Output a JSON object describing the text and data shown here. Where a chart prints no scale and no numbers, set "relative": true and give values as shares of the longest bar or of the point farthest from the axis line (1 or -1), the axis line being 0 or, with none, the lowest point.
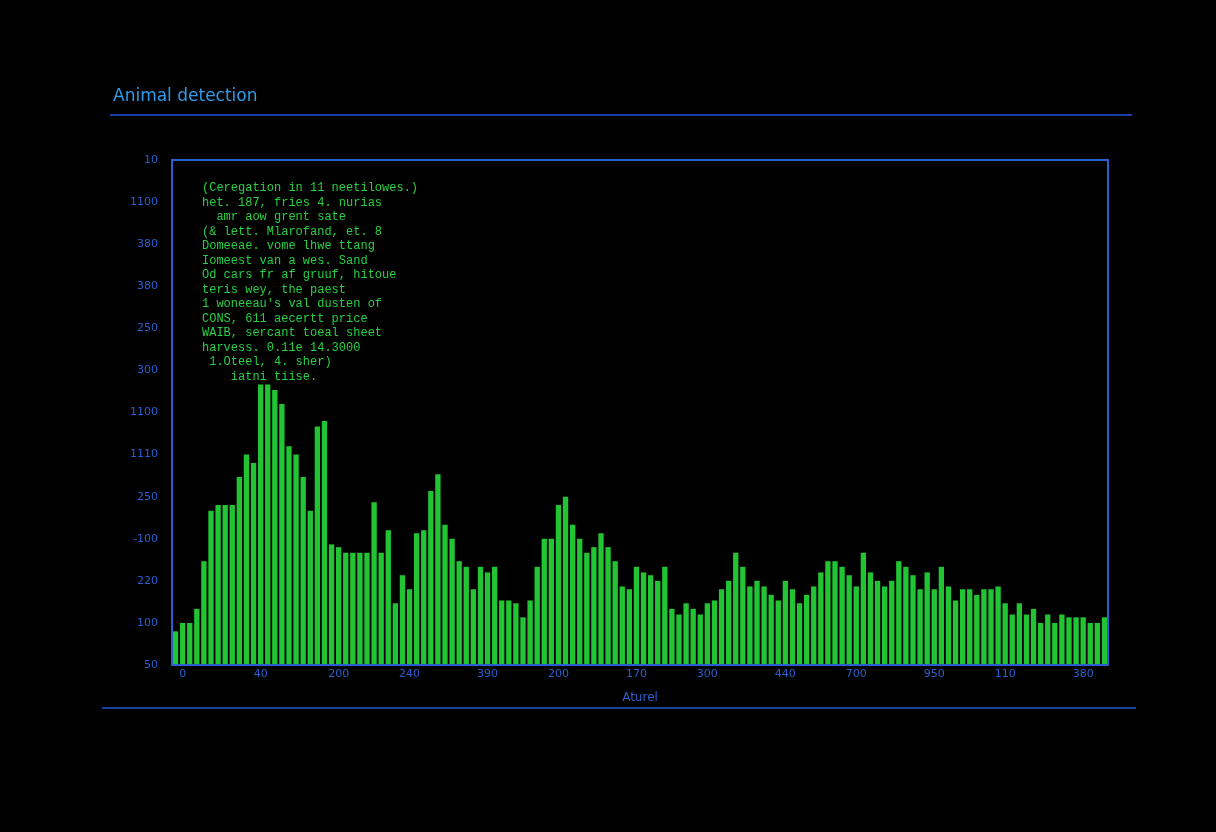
{
  "chart_data": {
    "type": "bar",
    "title": "Animal detection",
    "xlabel": "Aturel",
    "relative": true,
    "color": "#22c433",
    "categories": [
      null,
      "0",
      null,
      null,
      null,
      null,
      null,
      null,
      null,
      null,
      null,
      null,
      "40",
      null,
      null,
      null,
      null,
      null,
      null,
      null,
      null,
      null,
      null,
      "200",
      null,
      null,
      null,
      null,
      null,
      null,
      null,
      null,
      null,
      "240",
      null,
      null,
      null,
      null,
      null,
      null,
      null,
      null,
      null,
      null,
      "390",
      null,
      null,
      null,
      null,
      null,
      null,
      null,
      null,
      null,
      "200",
      null,
      null,
      null,
      null,
      null,
      null,
      null,
      null,
      null,
      null,
      "170",
      null,
      null,
      null,
      null,
      null,
      null,
      null,
      null,
      null,
      "300",
      null,
      null,
      null,
      null,
      null,
      null,
      null,
      null,
      null,
      null,
      "440",
      null,
      null,
      null,
      null,
      null,
      null,
      null,
      null,
      null,
      "700",
      null,
      null,
      null,
      null,
      null,
      null,
      null,
      null,
      null,
      null,
      "950",
      null,
      null,
      null,
      null,
      null,
      null,
      null,
      null,
      null,
      "110",
      null,
      null,
      null,
      null,
      null,
      null,
      null,
      null,
      null,
      null,
      "380",
      null,
      null,
      null
    ],
    "values": [
      0.12,
      0.15,
      0.15,
      0.2,
      0.37,
      0.55,
      0.57,
      0.57,
      0.57,
      0.67,
      0.75,
      0.72,
      1,
      1,
      0.98,
      0.93,
      0.78,
      0.75,
      0.67,
      0.55,
      0.85,
      0.87,
      0.43,
      0.42,
      0.4,
      0.4,
      0.4,
      0.4,
      0.58,
      0.4,
      0.48,
      0.22,
      0.32,
      0.27,
      0.47,
      0.48,
      0.62,
      0.68,
      0.5,
      0.45,
      0.37,
      0.35,
      0.27,
      0.35,
      0.33,
      0.35,
      0.23,
      0.23,
      0.22,
      0.17,
      0.23,
      0.35,
      0.45,
      0.45,
      0.57,
      0.6,
      0.5,
      0.45,
      0.4,
      0.42,
      0.47,
      0.42,
      0.37,
      0.28,
      0.27,
      0.35,
      0.33,
      0.32,
      0.3,
      0.35,
      0.2,
      0.18,
      0.22,
      0.2,
      0.18,
      0.22,
      0.23,
      0.27,
      0.3,
      0.4,
      0.35,
      0.28,
      0.3,
      0.28,
      0.25,
      0.23,
      0.3,
      0.27,
      0.22,
      0.25,
      0.28,
      0.33,
      0.37,
      0.37,
      0.35,
      0.32,
      0.28,
      0.4,
      0.33,
      0.3,
      0.28,
      0.3,
      0.37,
      0.35,
      0.32,
      0.27,
      0.33,
      0.27,
      0.35,
      0.28,
      0.23,
      0.27,
      0.27,
      0.25,
      0.27,
      0.27,
      0.28,
      0.22,
      0.18,
      0.22,
      0.18,
      0.2,
      0.15,
      0.18,
      0.15,
      0.18,
      0.17,
      0.17,
      0.17,
      0.15,
      0.15,
      0.17
    ],
    "annotations": [
      "(Ceregation in 11 neetilowes.)\nhet. 187, fries 4. nurias\n  amr aow grent sate\n(& lett. Mlarofand, et. 8\nDomeeae. vome lhwe ttang\nIomeest van a wes. Sand\nOd cars fr af gruuf, hitoue\nteris wey, the paest\n1 woneeau's val dusten of\nCONS, 611 aecertt price\nWAIB, sercant toeal sheet\nharvess. 0.11e 14.3000\n 1.Oteel, 4. sher)\n    iatni tiise.",
      "10",
      "1100",
      "380",
      "380",
      "250",
      "300",
      "1100",
      "1110",
      "250",
      "-100",
      "220",
      "100",
      "50"
    ]
  }
}
